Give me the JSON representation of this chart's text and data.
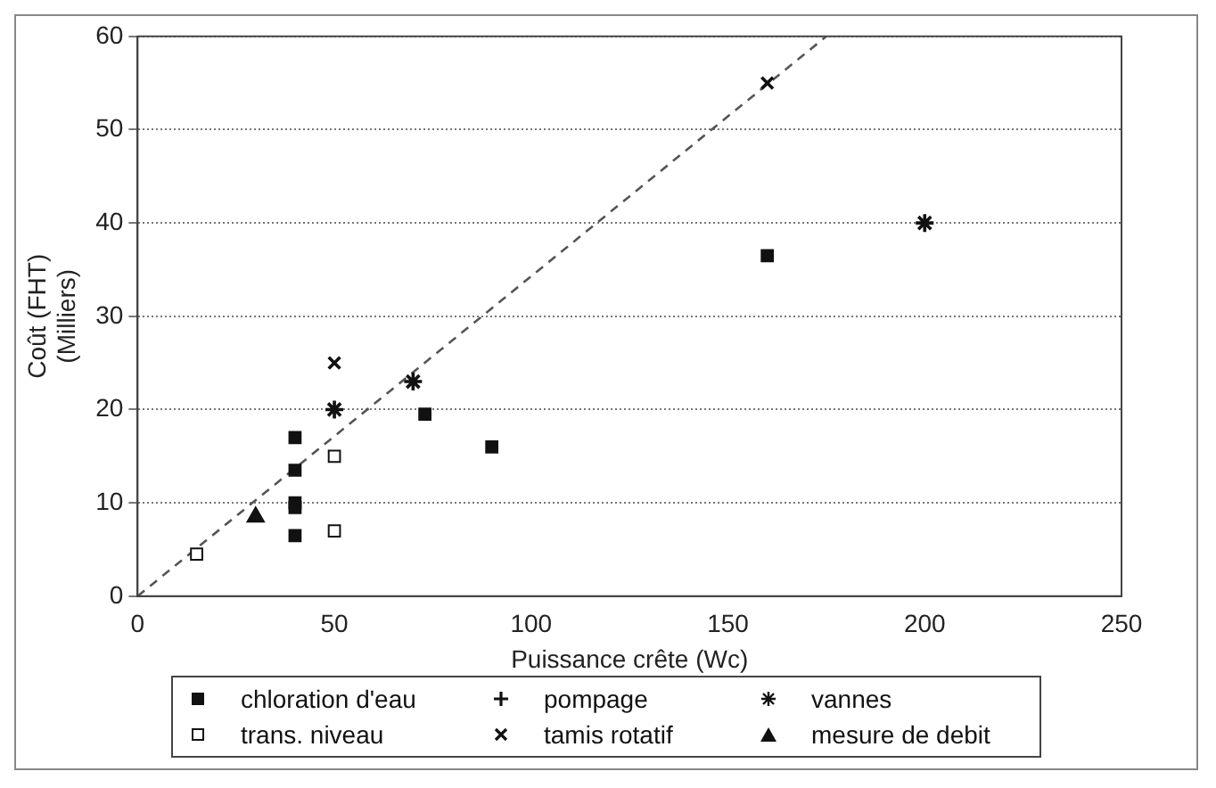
{
  "chart_data": {
    "type": "scatter",
    "xlabel": "Puissance crête (Wc)",
    "ylabel": "Coût (FHT)\n(Milliers)",
    "xlim": [
      0,
      250
    ],
    "xticks": [
      0,
      50,
      100,
      150,
      200,
      250
    ],
    "ylim": [
      0,
      60
    ],
    "yticks": [
      0,
      10,
      20,
      30,
      40,
      50,
      60
    ],
    "grid": "y",
    "legend": "bottom",
    "series": [
      {
        "name": "chloration d'eau",
        "color": "#111111",
        "marker": "square",
        "x": [
          40,
          40,
          40,
          40,
          40,
          73,
          90,
          160
        ],
        "values": [
          17,
          13.5,
          10,
          9.5,
          6.5,
          19.5,
          16,
          36.5
        ]
      },
      {
        "name": "trans. niveau",
        "color": "#ffffff",
        "marker": "square",
        "x": [
          15,
          50,
          50
        ],
        "values": [
          4.5,
          15,
          7
        ]
      },
      {
        "name": "pompage",
        "color": "#111111",
        "marker": "cross"
      },
      {
        "name": "tamis rotatif",
        "color": "#111111",
        "marker": "x",
        "x": [
          50,
          160
        ],
        "values": [
          25,
          55
        ]
      },
      {
        "name": "vannes",
        "color": "#111111",
        "x": [
          50,
          70,
          200
        ],
        "values": [
          20,
          23,
          40
        ]
      },
      {
        "name": "mesure de debit",
        "color": "#111111",
        "marker": "triangle",
        "x": [
          30
        ],
        "values": [
          8.5
        ]
      },
      {
        "type": "line",
        "color": "#555555",
        "line_style": "dashed",
        "marker": "none",
        "x": [
          0,
          175
        ],
        "values": [
          0,
          60
        ]
      }
    ]
  }
}
